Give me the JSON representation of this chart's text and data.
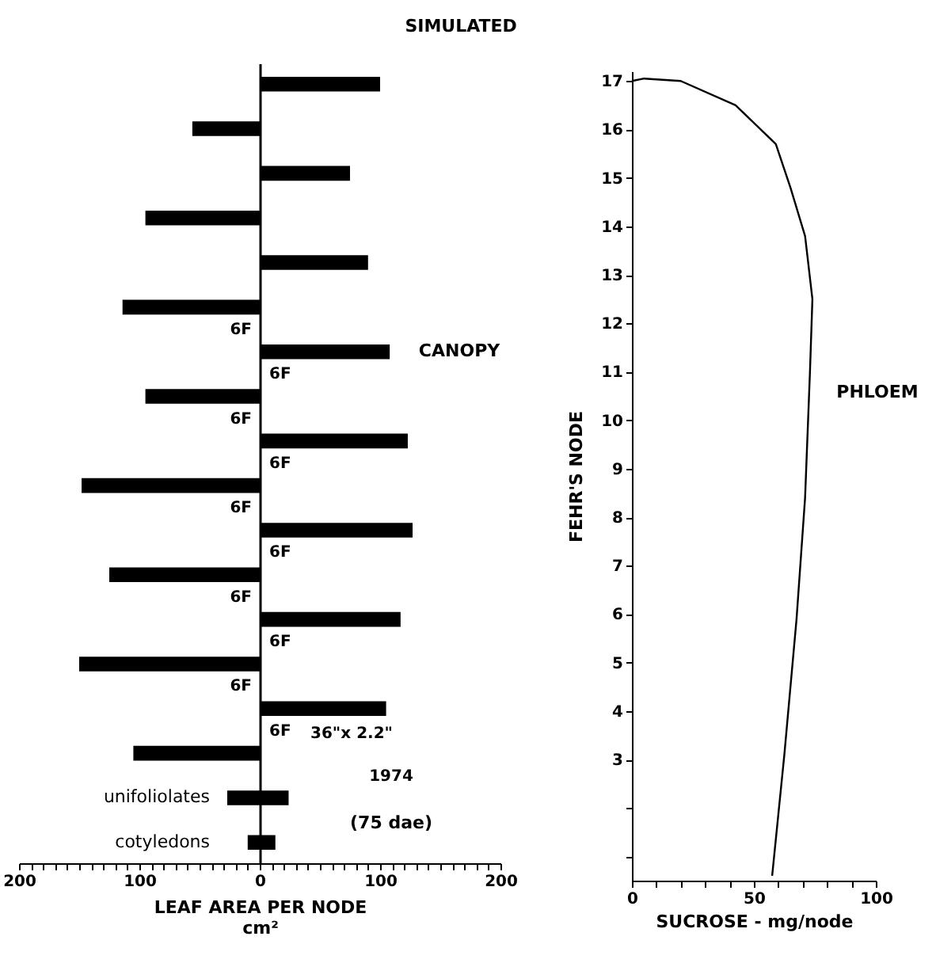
{
  "chart_data": [
    {
      "type": "bar",
      "orientation": "horizontal",
      "title": "SIMULATED",
      "xlabel": "LEAF AREA PER NODE\ncm²",
      "color": "#000000",
      "categories": [
        null,
        null,
        null,
        null,
        null,
        null,
        null,
        null,
        null,
        null,
        null,
        null,
        null,
        null,
        null,
        null,
        "unifoliolates",
        "cotyledons"
      ],
      "values": [
        100,
        -56,
        75,
        -95,
        90,
        -114,
        108,
        -95,
        123,
        -148,
        127,
        -125,
        117,
        -150,
        105,
        -105,
        51,
        23
      ],
      "base": [
        0,
        0,
        0,
        0,
        0,
        0,
        0,
        0,
        0,
        0,
        0,
        0,
        0,
        0,
        0,
        0,
        -27,
        -10
      ],
      "xlim": [
        -200,
        200
      ],
      "xticks": [
        {
          "value": -200,
          "label": "200"
        },
        {
          "value": -190,
          "label": null
        },
        {
          "value": -180,
          "label": null
        },
        {
          "value": -170,
          "label": null
        },
        {
          "value": -160,
          "label": null
        },
        {
          "value": -150,
          "label": null
        },
        {
          "value": -140,
          "label": null
        },
        {
          "value": -130,
          "label": null
        },
        {
          "value": -120,
          "label": null
        },
        {
          "value": -110,
          "label": null
        },
        {
          "value": -100,
          "label": "100"
        },
        {
          "value": -90,
          "label": null
        },
        {
          "value": -80,
          "label": null
        },
        {
          "value": -70,
          "label": null
        },
        {
          "value": -60,
          "label": null
        },
        {
          "value": -50,
          "label": null
        },
        {
          "value": -40,
          "label": null
        },
        {
          "value": -30,
          "label": null
        },
        {
          "value": -20,
          "label": null
        },
        {
          "value": -10,
          "label": null
        },
        0,
        {
          "value": 10,
          "label": null
        },
        {
          "value": 20,
          "label": null
        },
        {
          "value": 30,
          "label": null
        },
        {
          "value": 40,
          "label": null
        },
        {
          "value": 50,
          "label": null
        },
        {
          "value": 60,
          "label": null
        },
        {
          "value": 70,
          "label": null
        },
        {
          "value": 80,
          "label": null
        },
        {
          "value": 90,
          "label": null
        },
        100,
        {
          "value": 110,
          "label": null
        },
        {
          "value": 120,
          "label": null
        },
        {
          "value": 130,
          "label": null
        },
        {
          "value": 140,
          "label": null
        },
        {
          "value": 150,
          "label": null
        },
        {
          "value": 160,
          "label": null
        },
        {
          "value": 170,
          "label": null
        },
        {
          "value": 180,
          "label": null
        },
        {
          "value": 190,
          "label": null
        },
        200
      ],
      "annotations": [
        "CANOPY",
        "6F",
        "6F",
        "6F",
        "6F",
        "6F",
        "6F",
        "6F",
        "6F",
        "6F",
        "6F",
        "36\"x 2.2\"",
        "1974",
        "(75 dae)"
      ]
    },
    {
      "type": "line",
      "xlabel": "SUCROSE - mg/node",
      "ylabel": "FEHR'S NODE",
      "color": "#000000",
      "x": [
        57.5,
        62.5,
        67.5,
        71,
        73,
        74,
        71,
        65,
        59,
        42.5,
        20,
        5,
        0
      ],
      "values": [
        0.6,
        3.1,
        5.9,
        8.4,
        11,
        12.5,
        13.8,
        14.8,
        15.7,
        16.5,
        17,
        17.05,
        17
      ],
      "xlim": [
        0,
        100
      ],
      "xticks": [
        0,
        {
          "value": 10,
          "label": null
        },
        {
          "value": 20,
          "label": null
        },
        {
          "value": 30,
          "label": null
        },
        {
          "value": 40,
          "label": null
        },
        50,
        {
          "value": 60,
          "label": null
        },
        {
          "value": 70,
          "label": null
        },
        {
          "value": 80,
          "label": null
        },
        {
          "value": 90,
          "label": null
        },
        100
      ],
      "ylim": [
        0.5,
        17.2
      ],
      "yticks": [
        {
          "value": 1,
          "label": null
        },
        {
          "value": 2,
          "label": null
        },
        3,
        4,
        5,
        6,
        7,
        8,
        9,
        10,
        11,
        12,
        13,
        14,
        15,
        16,
        17
      ],
      "annotations": [
        "PHLOEM"
      ]
    }
  ]
}
